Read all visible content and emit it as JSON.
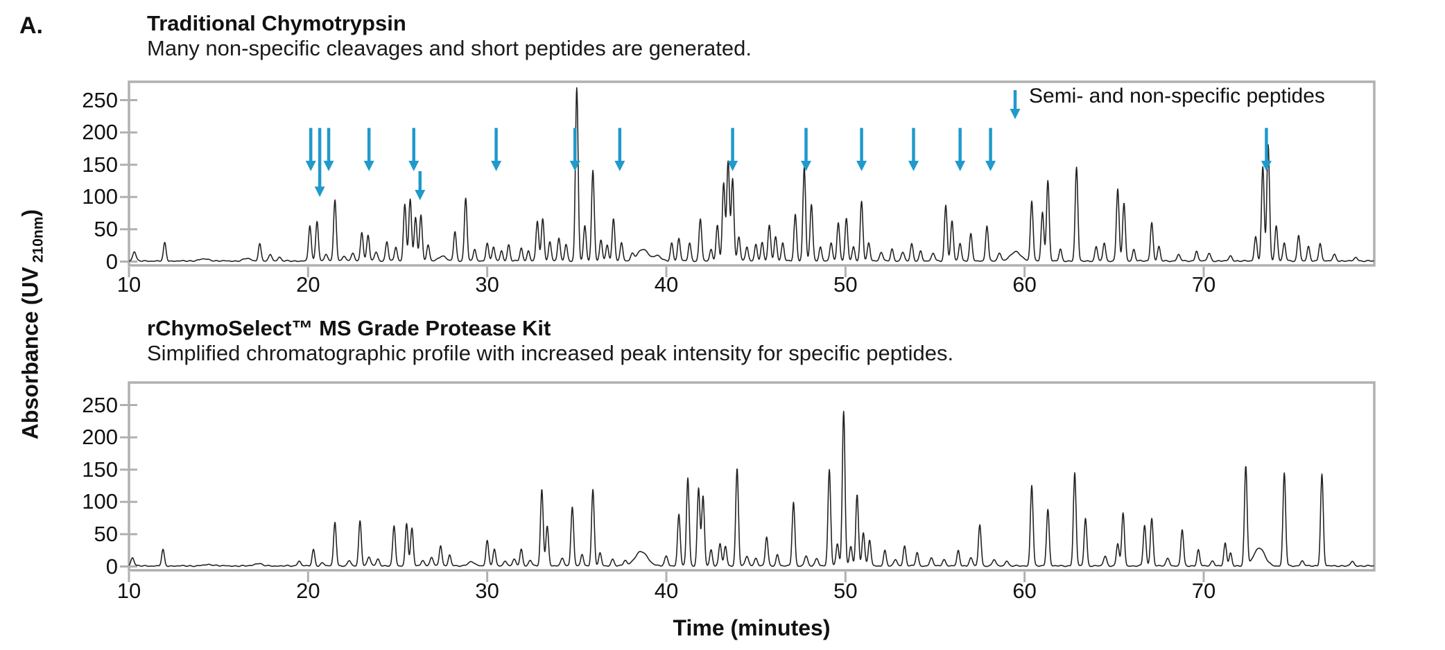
{
  "panel_label": "A.",
  "colors": {
    "arrow": "#2199cb",
    "frame": "#b0b0b0",
    "trace": "#222222",
    "text": "#111111",
    "background": "#ffffff"
  },
  "charts": [
    {
      "title": "Traditional Chymotrypsin",
      "subtitle": "Many non-specific cleavages and short peptides are generated."
    },
    {
      "title": "rChymoSelect™ MS Grade Protease Kit",
      "subtitle": "Simplified chromatographic profile with increased peak intensity for specific peptides."
    }
  ],
  "legend": {
    "label": "Semi- and non-specific peptides"
  },
  "axis": {
    "x_label": "Time (minutes)",
    "y_label_prefix": "Absorbance (UV",
    "y_label_sub": "210nm",
    "y_label_suffix": ")"
  },
  "chart_data": [
    {
      "type": "line",
      "title": "Traditional Chymotrypsin",
      "xlabel": "Time (minutes)",
      "ylabel": "Absorbance (UV 210nm)",
      "x_range": [
        10,
        79.5
      ],
      "y_range": [
        0,
        278
      ],
      "x_ticks": [
        10,
        20,
        30,
        40,
        50,
        60,
        70
      ],
      "y_ticks": [
        0,
        50,
        100,
        150,
        200,
        250
      ],
      "grid": false,
      "legend_position": "top-right",
      "peaks_time_height": [
        [
          10.3,
          15
        ],
        [
          12.0,
          28
        ],
        [
          14.2,
          3,
          0.3
        ],
        [
          16.6,
          4,
          0.2
        ],
        [
          17.3,
          27
        ],
        [
          17.9,
          10
        ],
        [
          18.4,
          6
        ],
        [
          20.1,
          55
        ],
        [
          20.5,
          62
        ],
        [
          21.0,
          10
        ],
        [
          21.5,
          95
        ],
        [
          22.0,
          8
        ],
        [
          22.5,
          12
        ],
        [
          23.0,
          45
        ],
        [
          23.35,
          40
        ],
        [
          23.8,
          14
        ],
        [
          24.4,
          30
        ],
        [
          24.9,
          22
        ],
        [
          25.4,
          88
        ],
        [
          25.7,
          95
        ],
        [
          26.0,
          68
        ],
        [
          26.3,
          72
        ],
        [
          26.7,
          25
        ],
        [
          27.5,
          8,
          0.2
        ],
        [
          28.2,
          45
        ],
        [
          28.8,
          98
        ],
        [
          29.3,
          18
        ],
        [
          30.0,
          28
        ],
        [
          30.35,
          22
        ],
        [
          30.8,
          16
        ],
        [
          31.2,
          25
        ],
        [
          31.9,
          20
        ],
        [
          32.3,
          16
        ],
        [
          32.8,
          62
        ],
        [
          33.1,
          65
        ],
        [
          33.5,
          30
        ],
        [
          34.0,
          35
        ],
        [
          34.4,
          26
        ],
        [
          35.0,
          268
        ],
        [
          35.45,
          55
        ],
        [
          35.9,
          140
        ],
        [
          36.35,
          32
        ],
        [
          36.7,
          25
        ],
        [
          37.05,
          65
        ],
        [
          37.5,
          28
        ],
        [
          38.1,
          10
        ],
        [
          38.7,
          18,
          0.3
        ],
        [
          39.5,
          8,
          0.2
        ],
        [
          40.3,
          28
        ],
        [
          40.7,
          35
        ],
        [
          41.3,
          28
        ],
        [
          41.9,
          65
        ],
        [
          42.5,
          18
        ],
        [
          42.85,
          55
        ],
        [
          43.2,
          120
        ],
        [
          43.45,
          155
        ],
        [
          43.7,
          128
        ],
        [
          44.05,
          38
        ],
        [
          44.5,
          22
        ],
        [
          45.0,
          26
        ],
        [
          45.35,
          28
        ],
        [
          45.75,
          55
        ],
        [
          46.1,
          38
        ],
        [
          46.5,
          28
        ],
        [
          47.2,
          72
        ],
        [
          47.7,
          145
        ],
        [
          48.1,
          88
        ],
        [
          48.6,
          22
        ],
        [
          49.2,
          28
        ],
        [
          49.6,
          60
        ],
        [
          50.05,
          66
        ],
        [
          50.45,
          22
        ],
        [
          50.9,
          93
        ],
        [
          51.3,
          28
        ],
        [
          52.0,
          14
        ],
        [
          52.6,
          18
        ],
        [
          53.2,
          14
        ],
        [
          53.7,
          26
        ],
        [
          54.2,
          16
        ],
        [
          54.9,
          12
        ],
        [
          55.6,
          86
        ],
        [
          55.95,
          62
        ],
        [
          56.4,
          28
        ],
        [
          57.0,
          42
        ],
        [
          57.9,
          55
        ],
        [
          58.6,
          12
        ],
        [
          59.5,
          14,
          0.3
        ],
        [
          60.4,
          93
        ],
        [
          61.0,
          75
        ],
        [
          61.3,
          125
        ],
        [
          62.0,
          18
        ],
        [
          62.9,
          145
        ],
        [
          64.0,
          22
        ],
        [
          64.45,
          28
        ],
        [
          65.2,
          112
        ],
        [
          65.55,
          90
        ],
        [
          66.1,
          18
        ],
        [
          67.1,
          60
        ],
        [
          67.5,
          22
        ],
        [
          68.6,
          10
        ],
        [
          69.6,
          16
        ],
        [
          70.3,
          12
        ],
        [
          71.5,
          8
        ],
        [
          72.9,
          38
        ],
        [
          73.3,
          145
        ],
        [
          73.6,
          180
        ],
        [
          74.05,
          55
        ],
        [
          74.5,
          28
        ],
        [
          75.3,
          40
        ],
        [
          75.85,
          22
        ],
        [
          76.5,
          28
        ],
        [
          77.3,
          10
        ],
        [
          78.5,
          6
        ]
      ],
      "arrows_minutes": [
        {
          "t": 20.15,
          "from": 207,
          "tip": 140
        },
        {
          "t": 20.65,
          "from": 207,
          "tip": 100
        },
        {
          "t": 21.15,
          "from": 207,
          "tip": 140
        },
        {
          "t": 23.4,
          "from": 207,
          "tip": 140
        },
        {
          "t": 25.9,
          "from": 207,
          "tip": 140
        },
        {
          "t": 26.25,
          "from": 140,
          "tip": 95
        },
        {
          "t": 30.5,
          "from": 207,
          "tip": 140
        },
        {
          "t": 34.9,
          "from": 207,
          "tip": 140
        },
        {
          "t": 37.4,
          "from": 207,
          "tip": 140
        },
        {
          "t": 43.7,
          "from": 207,
          "tip": 140
        },
        {
          "t": 47.8,
          "from": 207,
          "tip": 140
        },
        {
          "t": 50.9,
          "from": 207,
          "tip": 140
        },
        {
          "t": 53.8,
          "from": 207,
          "tip": 140
        },
        {
          "t": 56.4,
          "from": 207,
          "tip": 140
        },
        {
          "t": 58.1,
          "from": 207,
          "tip": 140
        },
        {
          "t": 73.5,
          "from": 207,
          "tip": 140
        }
      ],
      "annotation": "Semi- and non-specific peptides"
    },
    {
      "type": "line",
      "title": "rChymoSelect™ MS Grade Protease Kit",
      "xlabel": "Time (minutes)",
      "ylabel": "Absorbance (UV 210nm)",
      "x_range": [
        10,
        79.5
      ],
      "y_range": [
        0,
        285
      ],
      "x_ticks": [
        10,
        20,
        30,
        40,
        50,
        60,
        70
      ],
      "y_ticks": [
        0,
        50,
        100,
        150,
        200,
        250
      ],
      "grid": false,
      "peaks_time_height": [
        [
          10.2,
          13
        ],
        [
          11.9,
          25
        ],
        [
          14.5,
          2,
          0.3
        ],
        [
          17.2,
          4,
          0.2
        ],
        [
          19.5,
          8
        ],
        [
          20.3,
          25
        ],
        [
          20.8,
          5
        ],
        [
          21.5,
          68
        ],
        [
          22.3,
          8
        ],
        [
          22.9,
          70
        ],
        [
          23.4,
          14
        ],
        [
          23.9,
          11
        ],
        [
          24.8,
          62
        ],
        [
          25.5,
          66
        ],
        [
          25.8,
          58
        ],
        [
          26.4,
          9
        ],
        [
          26.9,
          13
        ],
        [
          27.4,
          32
        ],
        [
          27.9,
          17
        ],
        [
          29.1,
          6,
          0.2
        ],
        [
          30.0,
          40
        ],
        [
          30.4,
          26
        ],
        [
          31.0,
          8
        ],
        [
          31.5,
          10
        ],
        [
          31.9,
          26
        ],
        [
          32.4,
          9
        ],
        [
          33.05,
          118
        ],
        [
          33.35,
          62
        ],
        [
          34.2,
          12
        ],
        [
          34.75,
          92
        ],
        [
          35.3,
          18
        ],
        [
          35.9,
          118
        ],
        [
          36.3,
          20
        ],
        [
          37.0,
          10
        ],
        [
          37.7,
          8
        ],
        [
          38.6,
          22,
          0.35
        ],
        [
          40.0,
          15
        ],
        [
          40.7,
          80
        ],
        [
          41.2,
          137
        ],
        [
          41.8,
          120
        ],
        [
          42.05,
          108
        ],
        [
          42.5,
          25
        ],
        [
          43.0,
          35
        ],
        [
          43.3,
          30
        ],
        [
          43.95,
          151
        ],
        [
          44.5,
          15
        ],
        [
          45.0,
          12
        ],
        [
          45.6,
          45
        ],
        [
          46.2,
          18
        ],
        [
          47.1,
          99
        ],
        [
          47.8,
          15
        ],
        [
          48.4,
          12
        ],
        [
          49.1,
          149
        ],
        [
          49.55,
          35
        ],
        [
          49.9,
          240
        ],
        [
          50.3,
          30
        ],
        [
          50.65,
          111
        ],
        [
          51.0,
          52
        ],
        [
          51.35,
          40
        ],
        [
          52.2,
          24
        ],
        [
          52.8,
          10
        ],
        [
          53.3,
          31
        ],
        [
          54.0,
          21
        ],
        [
          54.8,
          12
        ],
        [
          55.5,
          10
        ],
        [
          56.3,
          24
        ],
        [
          57.0,
          12
        ],
        [
          57.5,
          64
        ],
        [
          58.3,
          10
        ],
        [
          59.0,
          8
        ],
        [
          60.4,
          125
        ],
        [
          61.3,
          88
        ],
        [
          62.8,
          144
        ],
        [
          63.4,
          74
        ],
        [
          64.5,
          15
        ],
        [
          65.2,
          35
        ],
        [
          65.5,
          82
        ],
        [
          66.7,
          63
        ],
        [
          67.1,
          74
        ],
        [
          68.0,
          12
        ],
        [
          68.8,
          56
        ],
        [
          69.7,
          25
        ],
        [
          70.5,
          8
        ],
        [
          71.2,
          35
        ],
        [
          71.5,
          20
        ],
        [
          72.35,
          153
        ],
        [
          73.1,
          28,
          0.3
        ],
        [
          74.5,
          144
        ],
        [
          75.5,
          8
        ],
        [
          76.6,
          142
        ],
        [
          78.3,
          7
        ]
      ],
      "arrows_minutes": []
    }
  ]
}
